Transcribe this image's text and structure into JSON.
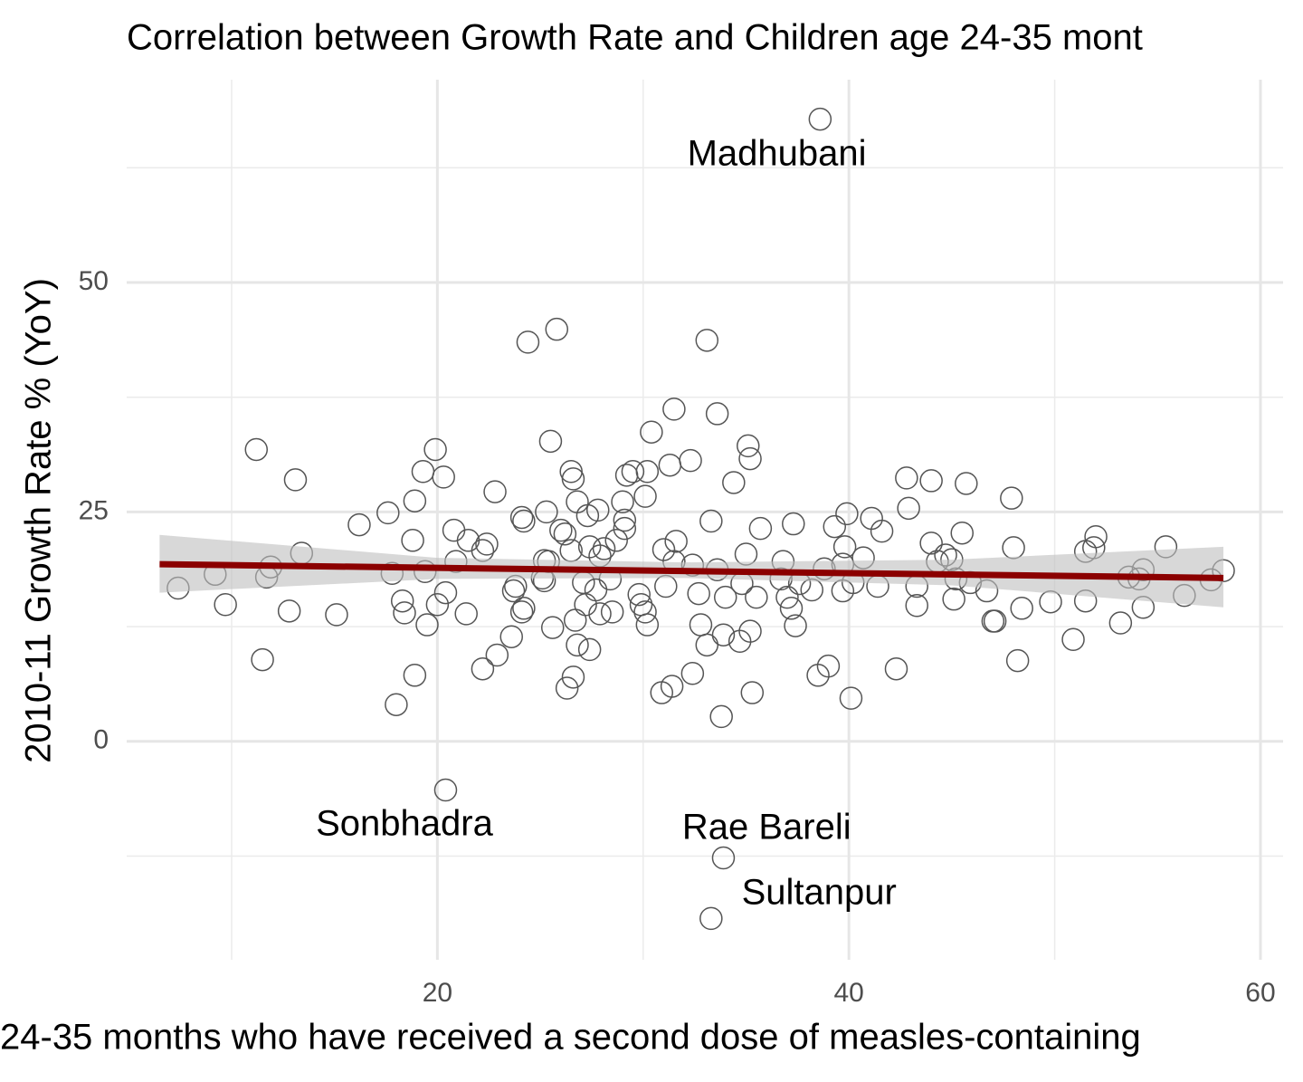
{
  "chart_data": {
    "type": "scatter",
    "title": "Correlation between Growth Rate and Children age 24-35 mont",
    "x_label": "24-35 months who have received a second dose of measles-containing",
    "y_label": "2010-11 Growth Rate % (YoY)",
    "xlim": [
      4.9,
      61.1
    ],
    "ylim": [
      -23.8,
      72.1
    ],
    "xticks": [
      20,
      40,
      60
    ],
    "yticks": [
      0,
      25,
      50
    ],
    "x_minor_ticks": [
      10,
      30,
      50
    ],
    "y_minor_ticks": [
      -12.5,
      12.5,
      37.5,
      62.5
    ],
    "grid": true,
    "color": "#555555",
    "x": [
      38.6,
      7.4,
      9.2,
      9.7,
      11.2,
      11.5,
      11.7,
      11.9,
      12.8,
      13.1,
      13.4,
      15.1,
      16.2,
      17.6,
      17.8,
      18.0,
      18.3,
      18.4,
      18.8,
      18.9,
      18.9,
      19.3,
      19.4,
      19.5,
      19.9,
      20.0,
      20.3,
      20.4,
      20.4,
      20.8,
      20.9,
      21.4,
      21.5,
      22.2,
      22.2,
      22.4,
      22.8,
      22.9,
      23.6,
      23.7,
      23.8,
      24.1,
      24.2,
      24.1,
      24.2,
      24.4,
      25.1,
      25.2,
      25.3,
      25.2,
      25.4,
      25.5,
      25.6,
      25.8,
      26.0,
      26.2,
      26.3,
      26.5,
      26.6,
      26.6,
      26.5,
      26.7,
      26.8,
      26.8,
      27.1,
      27.2,
      27.4,
      27.3,
      27.4,
      27.8,
      27.7,
      27.9,
      27.9,
      28.1,
      28.4,
      28.5,
      28.7,
      29.0,
      29.1,
      29.1,
      29.2,
      29.5,
      29.8,
      29.9,
      30.1,
      30.2,
      30.2,
      30.1,
      30.4,
      30.9,
      31.0,
      31.1,
      31.3,
      31.4,
      31.5,
      31.6,
      31.5,
      32.3,
      32.4,
      32.4,
      32.7,
      32.8,
      33.1,
      33.1,
      33.3,
      33.3,
      33.6,
      33.6,
      33.8,
      33.9,
      34.0,
      33.9,
      34.4,
      34.7,
      34.8,
      35.0,
      35.1,
      35.2,
      35.2,
      35.3,
      35.5,
      35.7,
      36.7,
      36.8,
      37.0,
      37.2,
      37.3,
      37.4,
      37.6,
      38.2,
      38.5,
      38.8,
      39.0,
      39.3,
      39.7,
      39.8,
      39.9,
      39.7,
      40.1,
      40.2,
      40.7,
      41.1,
      41.4,
      41.6,
      42.3,
      42.8,
      42.9,
      43.3,
      43.3,
      44.0,
      44.0,
      44.3,
      44.7,
      45.0,
      45.1,
      45.2,
      45.5,
      45.7,
      45.9,
      46.7,
      47.0,
      47.1,
      47.9,
      48.0,
      48.2,
      48.4,
      49.8,
      50.9,
      51.5,
      51.5,
      51.9,
      52.0,
      53.2,
      53.6,
      54.1,
      54.3,
      54.3,
      55.4,
      56.3,
      57.6,
      58.2
    ],
    "values": [
      67.8,
      16.7,
      18.2,
      14.9,
      31.8,
      8.9,
      17.9,
      19.0,
      14.2,
      28.5,
      20.5,
      13.8,
      23.6,
      24.9,
      18.3,
      4.0,
      15.3,
      14.0,
      21.9,
      26.2,
      7.2,
      29.4,
      18.5,
      12.7,
      31.8,
      14.9,
      28.8,
      16.2,
      -5.3,
      23.0,
      19.6,
      13.9,
      21.9,
      7.9,
      20.8,
      21.5,
      27.2,
      9.4,
      11.4,
      16.4,
      16.9,
      24.4,
      24.0,
      14.1,
      14.5,
      43.5,
      17.8,
      17.5,
      25.0,
      19.7,
      19.6,
      32.7,
      12.4,
      44.9,
      23.0,
      22.6,
      5.8,
      29.4,
      28.6,
      7.0,
      20.8,
      13.2,
      26.1,
      10.5,
      17.3,
      14.9,
      10.0,
      24.6,
      21.2,
      25.2,
      16.5,
      20.2,
      13.9,
      21.0,
      17.7,
      14.1,
      21.9,
      26.1,
      24.1,
      23.2,
      29.0,
      29.4,
      16.0,
      14.9,
      26.7,
      29.4,
      12.7,
      14.1,
      33.7,
      5.3,
      20.9,
      16.9,
      30.1,
      6.0,
      19.6,
      21.8,
      36.2,
      30.6,
      7.4,
      19.2,
      16.1,
      12.7,
      10.5,
      43.7,
      -19.3,
      24.0,
      35.7,
      18.7,
      2.7,
      11.6,
      15.7,
      -12.7,
      28.2,
      10.9,
      17.2,
      20.4,
      32.2,
      30.8,
      12.0,
      5.3,
      15.7,
      23.2,
      17.7,
      19.6,
      15.7,
      14.5,
      23.7,
      12.6,
      17.2,
      16.5,
      7.2,
      18.8,
      8.2,
      23.4,
      19.3,
      21.2,
      24.8,
      16.4,
      4.7,
      17.3,
      20.0,
      24.3,
      16.9,
      22.9,
      7.9,
      28.7,
      25.4,
      16.9,
      14.8,
      28.4,
      21.6,
      19.6,
      20.3,
      19.8,
      15.5,
      17.7,
      22.7,
      28.1,
      17.3,
      16.4,
      13.1,
      13.1,
      26.5,
      21.1,
      8.8,
      14.5,
      15.2,
      11.1,
      20.7,
      15.3,
      21.1,
      22.3,
      12.9,
      17.9,
      17.7,
      18.7,
      14.6,
      21.2,
      15.9,
      17.6,
      18.6
    ],
    "fit": {
      "color": "#8b0000",
      "x": [
        6.5,
        58.2
      ],
      "y": [
        19.3,
        17.8
      ]
    },
    "band": {
      "color": "#bebebe",
      "x": [
        6.5,
        20,
        32,
        45,
        58.2
      ],
      "lower": [
        16.2,
        17.7,
        17.8,
        17.0,
        14.6
      ],
      "upper": [
        22.5,
        20.0,
        19.5,
        19.8,
        21.2
      ]
    },
    "annotations": [
      {
        "text": "Madhubani",
        "x": 36.5,
        "y": 63.8
      },
      {
        "text": "Sonbhadra",
        "x": 18.4,
        "y": -9.2
      },
      {
        "text": "Rae Bareli",
        "x": 36.0,
        "y": -9.6
      },
      {
        "text": "Sultanpur",
        "x": 38.55,
        "y": -16.7
      }
    ]
  }
}
